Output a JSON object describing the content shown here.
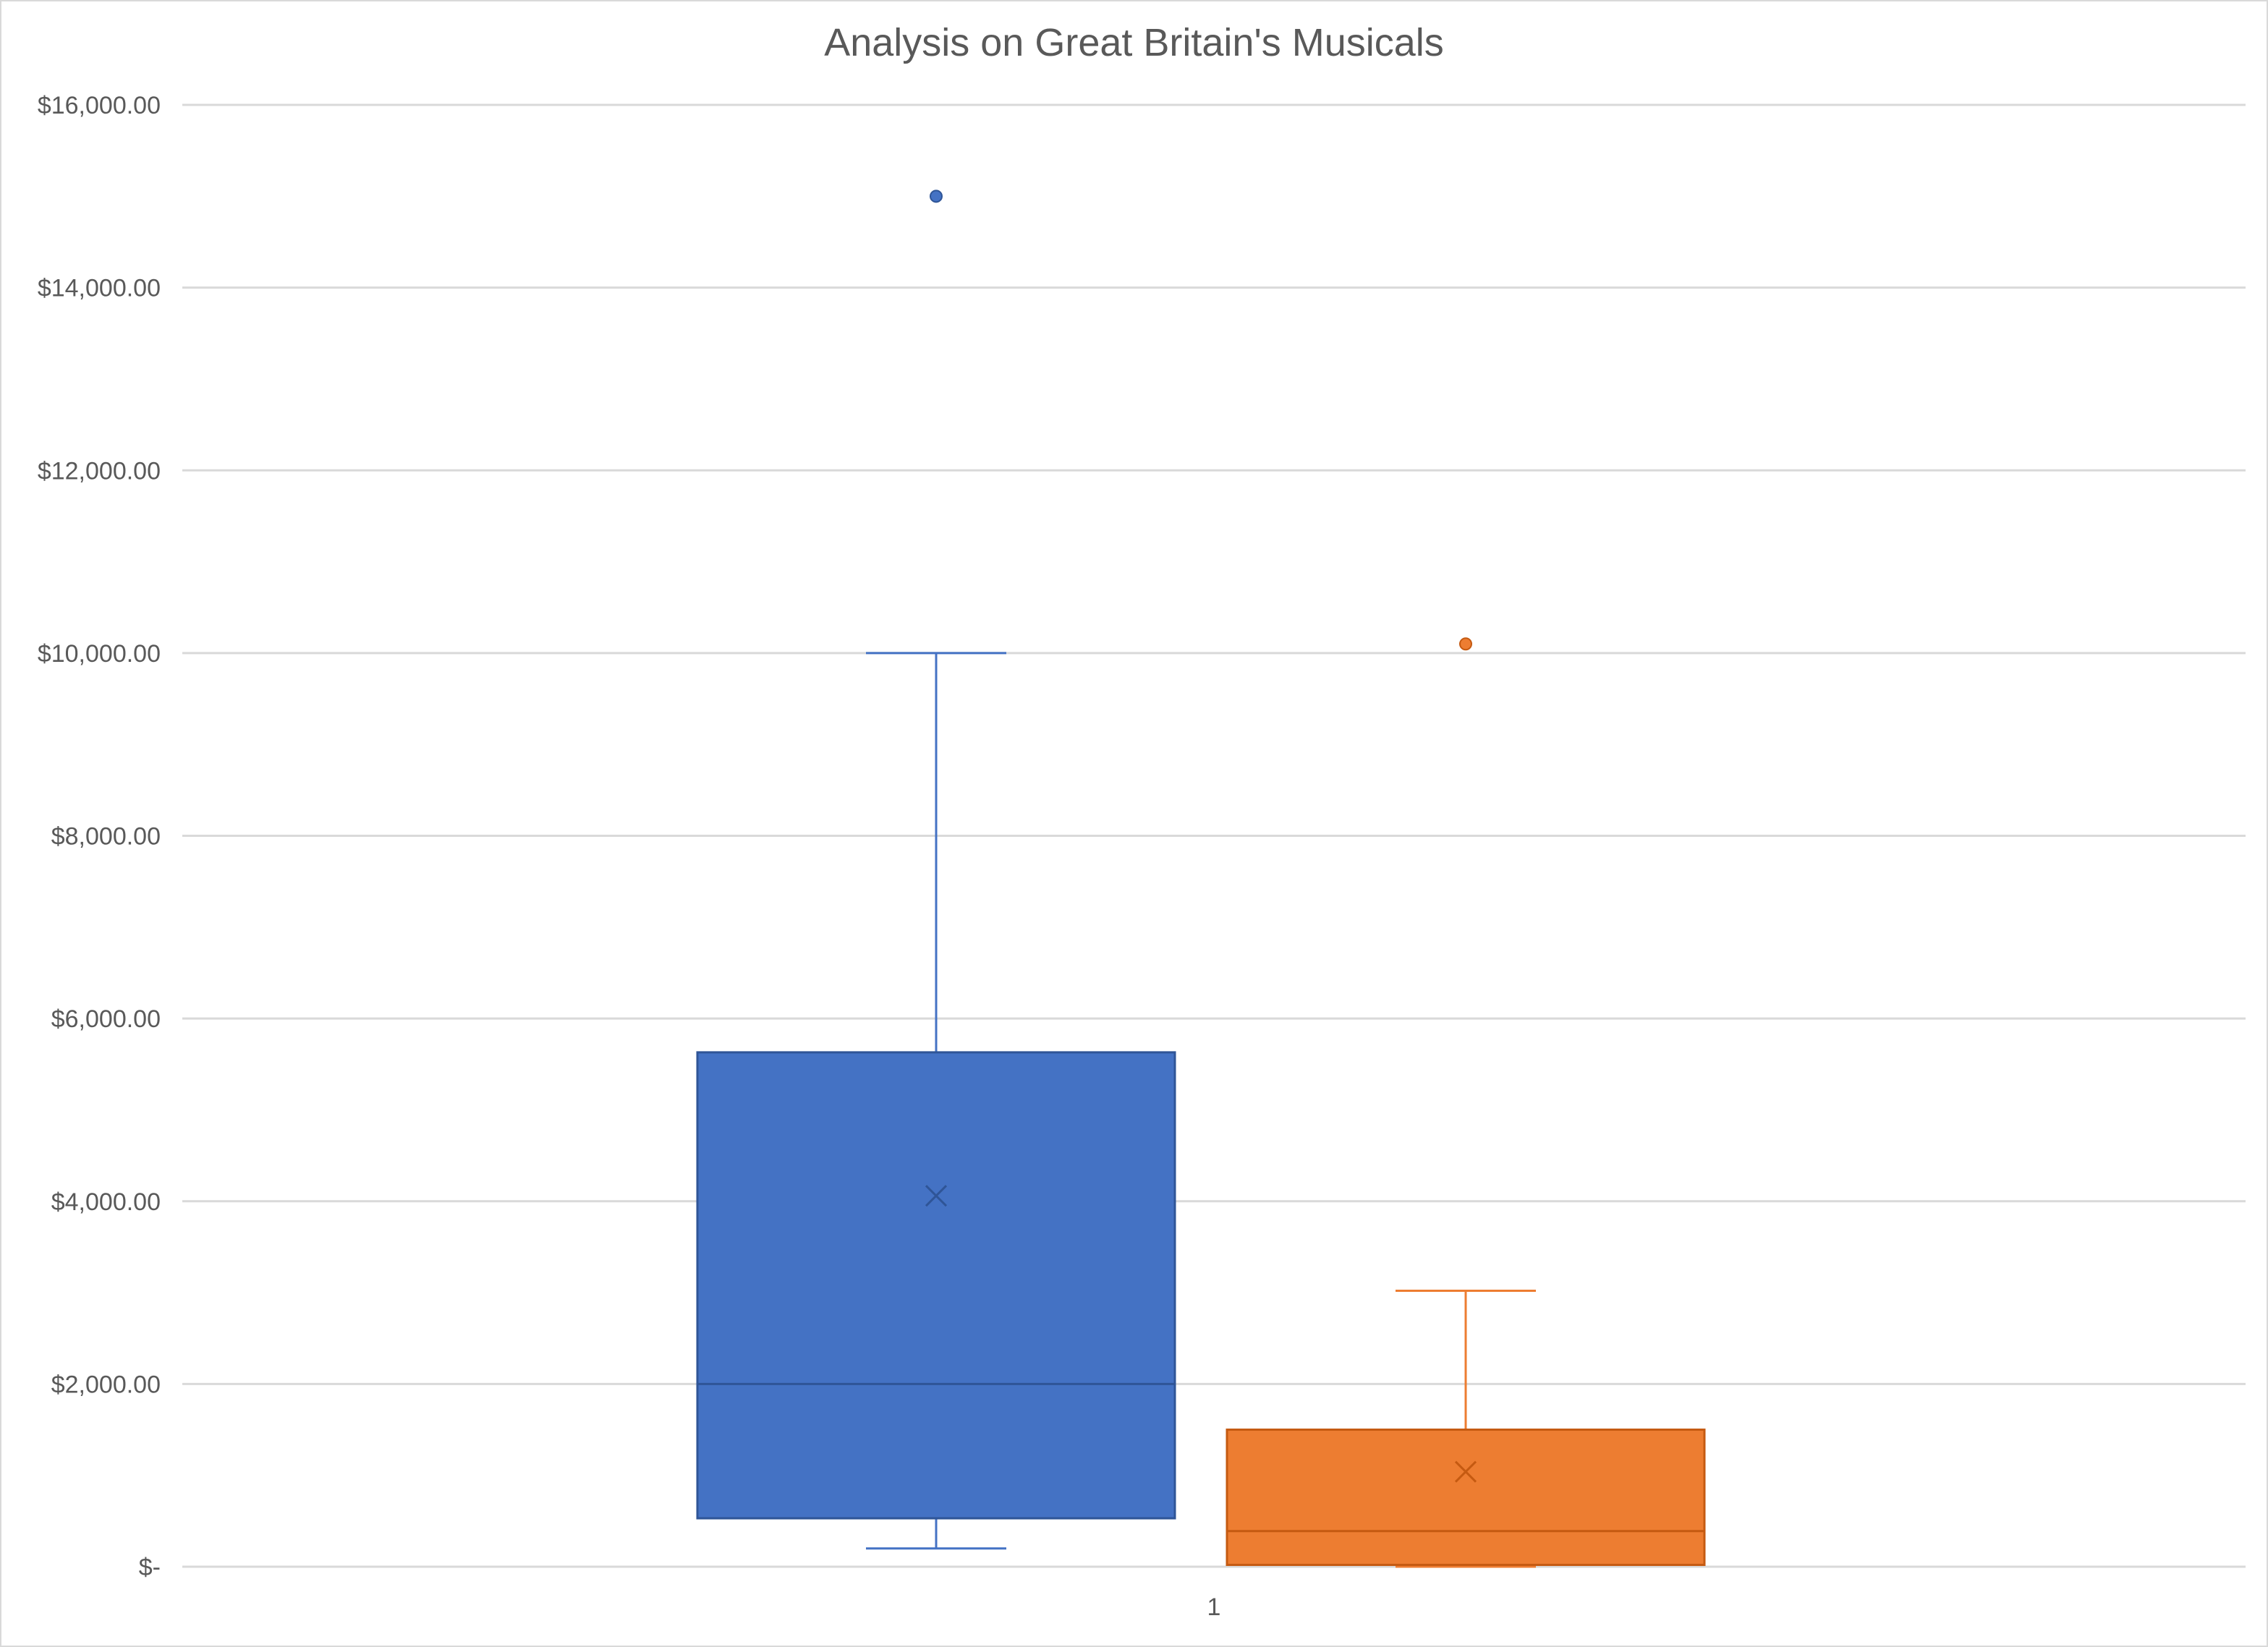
{
  "chart_data": {
    "type": "box",
    "title": "Analysis on Great Britain's Musicals",
    "xlabel": "",
    "ylabel": "",
    "categories": [
      "1"
    ],
    "ylim": [
      0,
      16000
    ],
    "y_ticks": [
      0,
      2000,
      4000,
      6000,
      8000,
      10000,
      12000,
      14000,
      16000
    ],
    "y_tick_labels": [
      "$-",
      "$2,000.00",
      "$4,000.00",
      "$6,000.00",
      "$8,000.00",
      "$10,000.00",
      "$12,000.00",
      "$14,000.00",
      "$16,000.00"
    ],
    "grid": true,
    "legend": "none",
    "series": [
      {
        "color": "#4472C4",
        "whisker_low": 200,
        "q1": 530,
        "median": 2000,
        "q3": 5630,
        "whisker_high": 10000,
        "mean": 4060,
        "outliers": [
          15000
        ]
      },
      {
        "color": "#ED7D31",
        "whisker_low": 0,
        "q1": 20,
        "median": 390,
        "q3": 1500,
        "whisker_high": 3020,
        "mean": 1040,
        "outliers": [
          10100
        ]
      }
    ]
  }
}
